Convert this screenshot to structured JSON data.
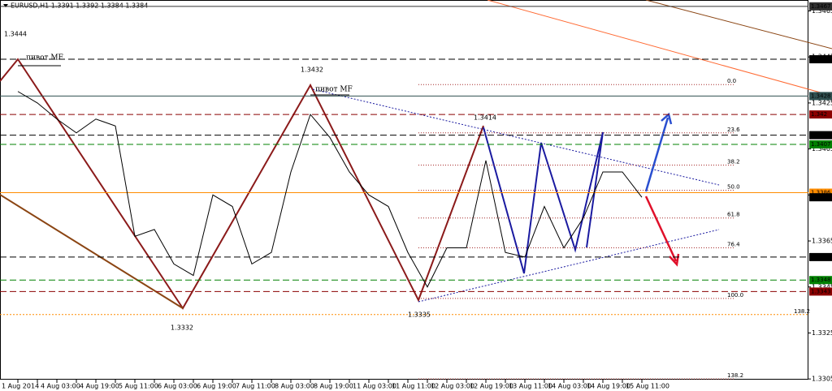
{
  "chart_data": {
    "type": "line",
    "title": "EURUSD,H1  1.3391 1.3392 1.3384 1.3384",
    "categories": [
      "1 Aug 2014",
      null,
      "4 Aug 03:00",
      null,
      "4 Aug 19:00",
      null,
      "5 Aug 11:00",
      null,
      "6 Aug 03:00",
      null,
      "6 Aug 19:00",
      null,
      "7 Aug 11:00",
      null,
      "8 Aug 03:00",
      null,
      "8 Aug 19:00",
      null,
      "11 Aug 03:00",
      null,
      "11 Aug 11:00",
      null,
      "12 Aug 03:00",
      null,
      "12 Aug 19:00",
      null,
      "13 Aug 11:00",
      null,
      "14 Aug 03:00",
      null,
      "14 Aug 19:00",
      null,
      "15 Aug 11:00"
    ],
    "series": [
      {
        "color": "#000000",
        "values": [
          1.343,
          1.3425,
          1.3418,
          1.3412,
          1.3418,
          1.3415,
          1.3367,
          1.337,
          1.3355,
          1.335,
          1.3385,
          1.338,
          1.3355,
          1.336,
          1.3395,
          1.342,
          1.341,
          1.3395,
          1.3385,
          1.338,
          1.336,
          1.3345,
          1.3362,
          1.3362,
          1.34,
          1.336,
          1.3358,
          1.338,
          1.3362,
          1.3375,
          1.3395,
          1.3395,
          1.3384
        ]
      }
    ],
    "ylim": [
      1.3304,
      1.3468
    ],
    "yticks": [
      1.3465,
      1.3445,
      1.3425,
      1.3405,
      1.3385,
      1.3365,
      1.3345,
      1.3325,
      1.3305
    ],
    "price_tags": [
      {
        "value": 1.3467,
        "color": "#303030",
        "line": "solid"
      },
      {
        "value": 1.3444,
        "color": "#000000",
        "line": "dashed"
      },
      {
        "value": 1.3428,
        "color": "#2f4f4f",
        "line": "solid"
      },
      {
        "value": 1.342,
        "color": "#8b0000",
        "line": "dashed"
      },
      {
        "value": 1.3411,
        "color": "#000000",
        "line": "dashed"
      },
      {
        "value": 1.3407,
        "color": "#008000",
        "line": "dashed"
      },
      {
        "value": 1.3386,
        "color": "#ff8c00",
        "line": "solid"
      },
      {
        "value": 1.3384,
        "color": "#000000",
        "line": "none"
      },
      {
        "value": 1.3358,
        "color": "#000000",
        "line": "dashed"
      },
      {
        "value": 1.3348,
        "color": "#008000",
        "line": "dashed"
      },
      {
        "value": 1.3343,
        "color": "#8b0000",
        "line": "dashed"
      }
    ],
    "fib_levels": [
      {
        "value": 1.3433,
        "label": "0.0"
      },
      {
        "value": 1.3412,
        "label": "23.6"
      },
      {
        "value": 1.3398,
        "label": "38.2"
      },
      {
        "value": 1.3387,
        "label": "50.0"
      },
      {
        "value": 1.3375,
        "label": "61.8"
      },
      {
        "value": 1.3362,
        "label": "76.4"
      },
      {
        "value": 1.334,
        "label": "100.0"
      },
      {
        "value": 1.3305,
        "label": "138.2"
      }
    ],
    "ext_level": {
      "value": 1.3333,
      "label": "138.2",
      "color": "#ff8c00"
    },
    "annotations": [
      "1.3444",
      "пивот MF",
      "1.3432",
      "пивот MF",
      "1.3414",
      "1.3332",
      "1.3335"
    ]
  }
}
